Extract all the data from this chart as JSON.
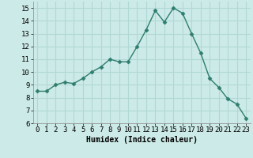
{
  "x": [
    0,
    1,
    2,
    3,
    4,
    5,
    6,
    7,
    8,
    9,
    10,
    11,
    12,
    13,
    14,
    15,
    16,
    17,
    18,
    19,
    20,
    21,
    22,
    23
  ],
  "y": [
    8.5,
    8.5,
    9.0,
    9.2,
    9.1,
    9.5,
    10.0,
    10.4,
    11.0,
    10.8,
    10.8,
    12.0,
    13.3,
    14.8,
    13.9,
    15.0,
    14.6,
    13.0,
    11.5,
    9.5,
    8.8,
    7.9,
    7.5,
    6.4
  ],
  "line_color": "#2e7d6e",
  "marker": "D",
  "marker_size": 2.5,
  "bg_color": "#cceae7",
  "grid_color": "#b0d8d5",
  "xlabel": "Humidex (Indice chaleur)",
  "ylim": [
    6,
    15.5
  ],
  "yticks": [
    6,
    7,
    8,
    9,
    10,
    11,
    12,
    13,
    14,
    15
  ],
  "xticks": [
    0,
    1,
    2,
    3,
    4,
    5,
    6,
    7,
    8,
    9,
    10,
    11,
    12,
    13,
    14,
    15,
    16,
    17,
    18,
    19,
    20,
    21,
    22,
    23
  ],
  "xlabel_fontsize": 7,
  "tick_fontsize": 6.5
}
